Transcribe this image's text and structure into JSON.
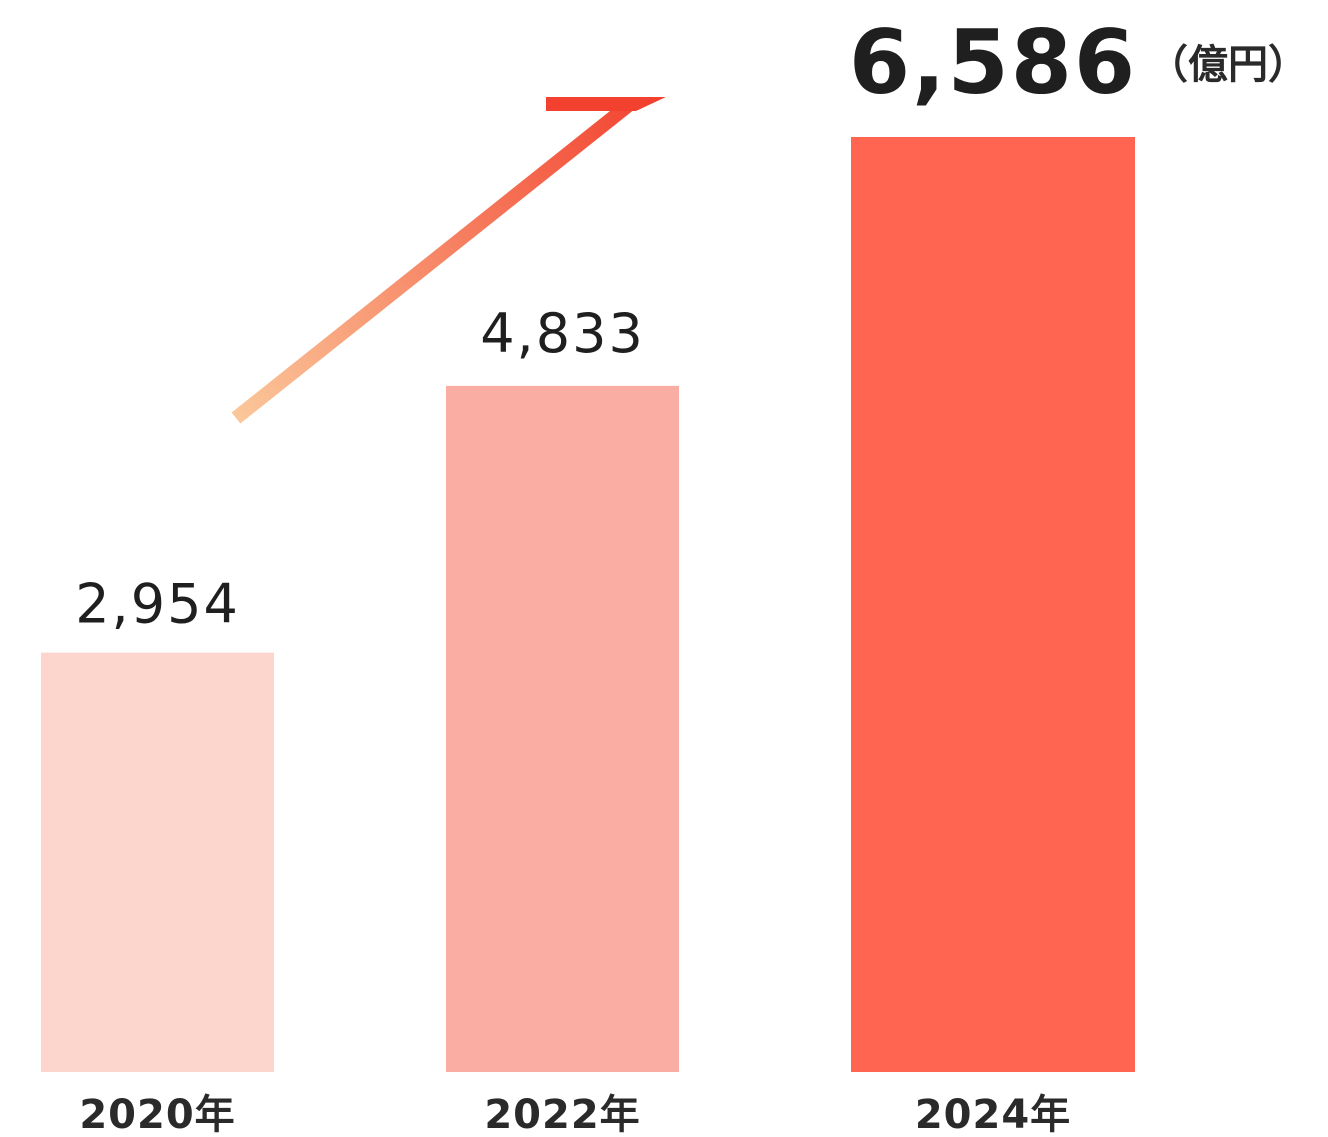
{
  "chart_data": {
    "type": "bar",
    "categories": [
      "2020年",
      "2022年",
      "2024年"
    ],
    "values": [
      2954,
      4833,
      6586
    ],
    "value_labels": [
      "2,954",
      "4,833",
      "6,586"
    ],
    "unit": "（億円）",
    "colors": [
      "#fcd5cd",
      "#faaea3",
      "#ff6550"
    ],
    "trend_arrow": {
      "present": true,
      "gradient": [
        "#fbc79a",
        "#f2412f"
      ]
    },
    "emphasized_index": 2
  }
}
